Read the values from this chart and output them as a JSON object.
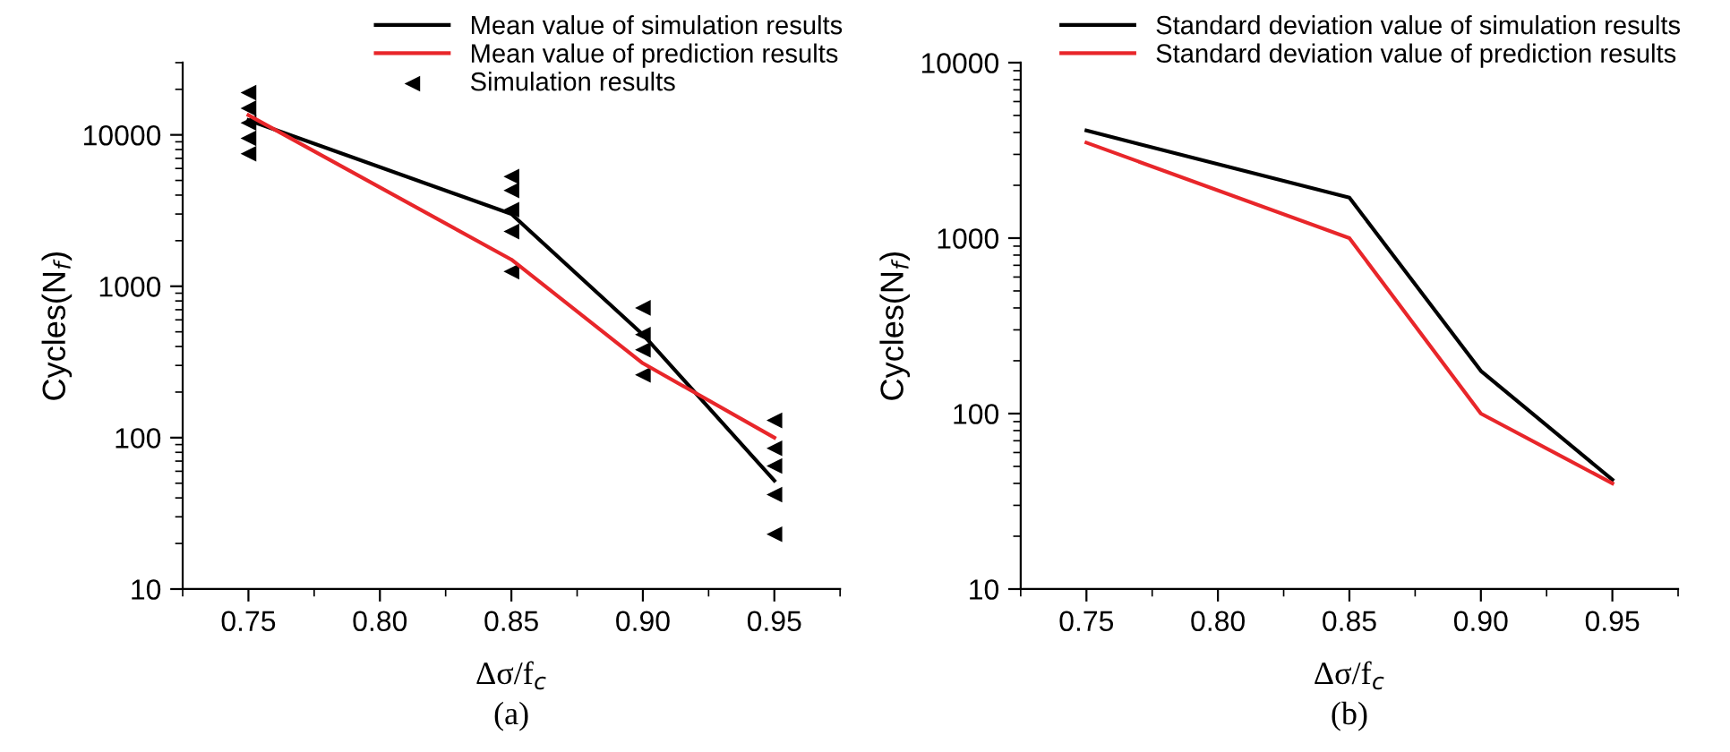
{
  "chart_data": [
    {
      "type": "line",
      "title": "(a)",
      "xlabel": "Δσ/f$_{c}$",
      "ylabel": "Cycles(N$_{f}$)",
      "log": "y",
      "xlim": [
        0.725,
        0.975
      ],
      "xticks": [
        {
          "value": 0.75,
          "label": "0.75"
        },
        {
          "value": 0.8,
          "label": "0.80"
        },
        {
          "value": 0.85,
          "label": "0.85"
        },
        {
          "value": 0.9,
          "label": "0.90"
        },
        {
          "value": 0.95,
          "label": "0.95"
        }
      ],
      "ylim": [
        10,
        30000
      ],
      "yticks": [
        10,
        100,
        1000,
        10000
      ],
      "grid": false,
      "legend": "top right",
      "series": [
        {
          "name": "Mean value of simulation results",
          "color": "#000000",
          "x": [
            0.75,
            0.85,
            0.9,
            0.95
          ],
          "values": [
            12500,
            3000,
            480,
            52
          ]
        },
        {
          "name": "Mean value of prediction results",
          "color": "#e8262a",
          "x": [
            0.75,
            0.85,
            0.9,
            0.95
          ],
          "values": [
            13500,
            1500,
            310,
            100
          ]
        },
        {
          "name": "Simulation results",
          "type": "scatter",
          "marker": "triangle",
          "color": "#000000",
          "x": [
            0.75,
            0.75,
            0.75,
            0.75,
            0.75,
            0.85,
            0.85,
            0.85,
            0.85,
            0.85,
            0.9,
            0.9,
            0.9,
            0.9,
            0.95,
            0.95,
            0.95,
            0.95,
            0.95
          ],
          "values": [
            7500,
            9500,
            12000,
            15000,
            19000,
            5300,
            4300,
            3200,
            2300,
            1250,
            720,
            480,
            380,
            260,
            130,
            85,
            65,
            42,
            23
          ]
        }
      ]
    },
    {
      "type": "line",
      "title": "(b)",
      "xlabel": "Δσ/f$_{c}$",
      "ylabel": "Cycles(N$_{f}$)",
      "log": "y",
      "xlim": [
        0.725,
        0.975
      ],
      "xticks": [
        {
          "value": 0.75,
          "label": "0.75"
        },
        {
          "value": 0.8,
          "label": "0.80"
        },
        {
          "value": 0.85,
          "label": "0.85"
        },
        {
          "value": 0.9,
          "label": "0.90"
        },
        {
          "value": 0.95,
          "label": "0.95"
        }
      ],
      "ylim": [
        10,
        10000
      ],
      "yticks": [
        10,
        100,
        1000,
        10000
      ],
      "grid": false,
      "legend": "top right",
      "series": [
        {
          "name": "Standard deviation value of simulation results",
          "color": "#000000",
          "x": [
            0.75,
            0.85,
            0.9,
            0.95
          ],
          "values": [
            4100,
            1700,
            175,
            42
          ]
        },
        {
          "name": "Standard deviation value of prediction results",
          "color": "#e8262a",
          "x": [
            0.75,
            0.85,
            0.9,
            0.95
          ],
          "values": [
            3500,
            1000,
            100,
            40
          ]
        }
      ]
    }
  ]
}
